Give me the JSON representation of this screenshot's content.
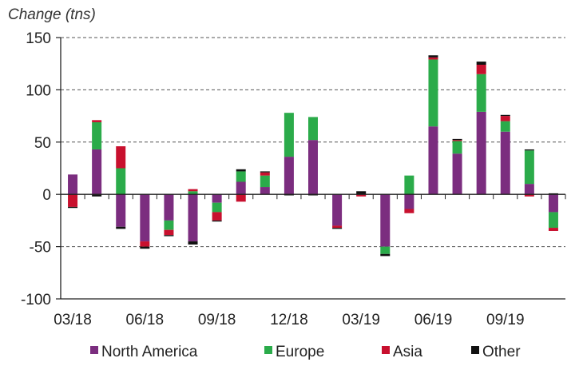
{
  "chart_data": {
    "type": "bar",
    "stacked": true,
    "ylabel": "Change (tns)",
    "xlabel": "",
    "ylim": [
      -100,
      150
    ],
    "yticks": [
      -100,
      -50,
      0,
      50,
      100,
      150
    ],
    "grid": true,
    "legend_position": "bottom",
    "x_tick_labels": [
      {
        "index": 0,
        "label": "03/18"
      },
      {
        "index": 3,
        "label": "06/18"
      },
      {
        "index": 6,
        "label": "09/18"
      },
      {
        "index": 9,
        "label": "12/18"
      },
      {
        "index": 12,
        "label": "03/19"
      },
      {
        "index": 15,
        "label": "06/19"
      },
      {
        "index": 18,
        "label": "09/19"
      }
    ],
    "categories": [
      "2018-03",
      "2018-04",
      "2018-05",
      "2018-06",
      "2018-07",
      "2018-08",
      "2018-09",
      "2018-10",
      "2018-11",
      "2018-12",
      "2019-01",
      "2019-02",
      "2019-03",
      "2019-04",
      "2019-05",
      "2019-06",
      "2019-07",
      "2019-08",
      "2019-09",
      "2019-10",
      "2019-11"
    ],
    "series": [
      {
        "name": "North America",
        "color": "#7b2d7f",
        "values": [
          19,
          43,
          -31,
          -45,
          -25,
          -45,
          -8,
          12,
          7,
          36,
          52,
          -30,
          0,
          -50,
          -14,
          65,
          39,
          79,
          60,
          10,
          -17
        ]
      },
      {
        "name": "Europe",
        "color": "#2bab4a",
        "values": [
          0,
          26,
          25,
          0,
          -9,
          3,
          -9,
          10,
          11,
          42,
          22,
          0,
          0,
          -7,
          18,
          64,
          12,
          36,
          10,
          32,
          -15
        ]
      },
      {
        "name": "Asia",
        "color": "#c8102e",
        "values": [
          -12,
          2,
          21,
          -5,
          -5,
          2,
          -8,
          -7,
          3,
          0,
          0,
          -2,
          -2,
          0,
          -4,
          2,
          1,
          9,
          5,
          -2,
          -3
        ]
      },
      {
        "name": "Other",
        "color": "#111111",
        "values": [
          -1,
          -2,
          -2,
          -2,
          -1,
          -3,
          -1,
          2,
          1,
          -1,
          -1,
          -1,
          3,
          -2,
          0,
          2,
          1,
          3,
          1,
          1,
          1
        ]
      }
    ]
  }
}
